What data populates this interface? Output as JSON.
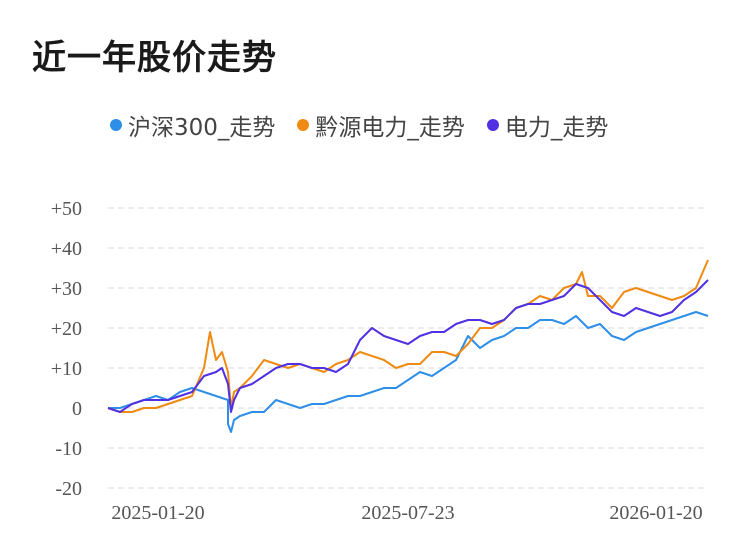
{
  "chart_data": {
    "type": "line",
    "title": "近一年股价走势",
    "y_ticks": [
      "+50",
      "+40",
      "+30",
      "+20",
      "+10",
      "0",
      "-10",
      "-20"
    ],
    "ylim": [
      -20,
      50
    ],
    "x_ticks": [
      "2025-01-20",
      "2025-07-23",
      "2026-01-20"
    ],
    "grid": true,
    "legend_position": "top",
    "series": [
      {
        "name": "沪深300_走势",
        "color": "#2f8ee8",
        "x": [
          0,
          0.02,
          0.04,
          0.06,
          0.08,
          0.1,
          0.12,
          0.14,
          0.16,
          0.18,
          0.2,
          0.2,
          0.205,
          0.21,
          0.22,
          0.24,
          0.26,
          0.28,
          0.3,
          0.32,
          0.34,
          0.36,
          0.38,
          0.4,
          0.42,
          0.44,
          0.46,
          0.48,
          0.5,
          0.52,
          0.54,
          0.56,
          0.58,
          0.6,
          0.62,
          0.64,
          0.66,
          0.68,
          0.7,
          0.72,
          0.74,
          0.76,
          0.78,
          0.8,
          0.82,
          0.84,
          0.86,
          0.88,
          0.9,
          0.92,
          0.94,
          0.96,
          0.98,
          1.0
        ],
        "values": [
          0,
          0,
          1,
          2,
          3,
          2,
          4,
          5,
          4,
          3,
          2,
          -4,
          -6,
          -3,
          -2,
          -1,
          -1,
          2,
          1,
          0,
          1,
          1,
          2,
          3,
          3,
          4,
          5,
          5,
          7,
          9,
          8,
          10,
          12,
          18,
          15,
          17,
          18,
          20,
          20,
          22,
          22,
          21,
          23,
          20,
          21,
          18,
          17,
          19,
          20,
          21,
          22,
          23,
          24,
          23
        ]
      },
      {
        "name": "黔源电力_走势",
        "color": "#ef8a12",
        "x": [
          0,
          0.02,
          0.04,
          0.06,
          0.08,
          0.1,
          0.12,
          0.14,
          0.16,
          0.17,
          0.18,
          0.19,
          0.2,
          0.205,
          0.21,
          0.22,
          0.24,
          0.26,
          0.28,
          0.3,
          0.32,
          0.34,
          0.36,
          0.38,
          0.4,
          0.42,
          0.44,
          0.46,
          0.48,
          0.5,
          0.52,
          0.54,
          0.56,
          0.58,
          0.6,
          0.62,
          0.64,
          0.66,
          0.68,
          0.7,
          0.72,
          0.74,
          0.76,
          0.78,
          0.79,
          0.8,
          0.82,
          0.84,
          0.86,
          0.88,
          0.9,
          0.92,
          0.94,
          0.96,
          0.98,
          1.0
        ],
        "values": [
          0,
          -1,
          -1,
          0,
          0,
          1,
          2,
          3,
          10,
          19,
          12,
          14,
          9,
          0,
          4,
          5,
          8,
          12,
          11,
          10,
          11,
          10,
          9,
          11,
          12,
          14,
          13,
          12,
          10,
          11,
          11,
          14,
          14,
          13,
          16,
          20,
          20,
          22,
          25,
          26,
          28,
          27,
          30,
          31,
          34,
          28,
          28,
          25,
          29,
          30,
          29,
          28,
          27,
          28,
          30,
          37
        ]
      },
      {
        "name": "电力_走势",
        "color": "#5130e3",
        "x": [
          0,
          0.02,
          0.04,
          0.06,
          0.08,
          0.1,
          0.12,
          0.14,
          0.16,
          0.18,
          0.19,
          0.2,
          0.205,
          0.21,
          0.22,
          0.24,
          0.26,
          0.28,
          0.3,
          0.32,
          0.34,
          0.36,
          0.38,
          0.4,
          0.42,
          0.44,
          0.46,
          0.48,
          0.5,
          0.52,
          0.54,
          0.56,
          0.58,
          0.6,
          0.62,
          0.64,
          0.66,
          0.68,
          0.7,
          0.72,
          0.74,
          0.76,
          0.78,
          0.8,
          0.82,
          0.84,
          0.86,
          0.88,
          0.9,
          0.92,
          0.94,
          0.96,
          0.98,
          1.0
        ],
        "values": [
          0,
          -1,
          1,
          2,
          2,
          2,
          3,
          4,
          8,
          9,
          10,
          6,
          -1,
          2,
          5,
          6,
          8,
          10,
          11,
          11,
          10,
          10,
          9,
          11,
          17,
          20,
          18,
          17,
          16,
          18,
          19,
          19,
          21,
          22,
          22,
          21,
          22,
          25,
          26,
          26,
          27,
          28,
          31,
          30,
          27,
          24,
          23,
          25,
          24,
          23,
          24,
          27,
          29,
          32
        ]
      }
    ]
  }
}
